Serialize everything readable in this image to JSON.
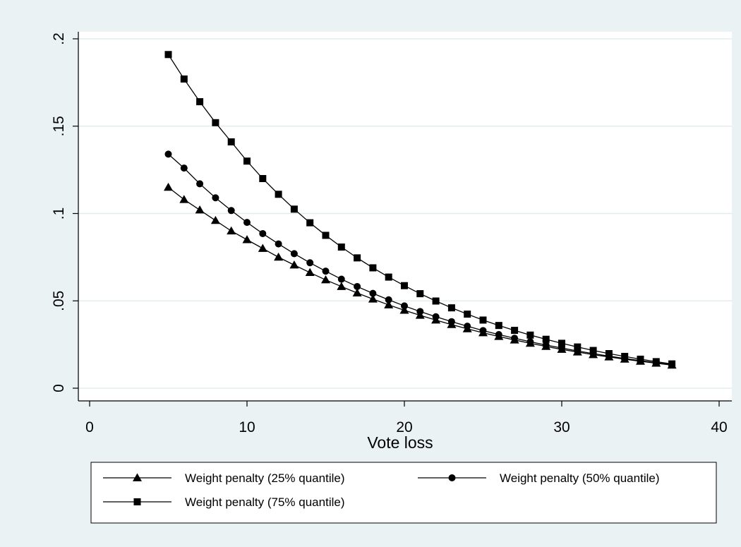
{
  "chart_data": {
    "type": "line",
    "title": "",
    "xlabel": "Vote loss",
    "ylabel": "",
    "xlim": [
      0,
      40
    ],
    "ylim": [
      0,
      0.2
    ],
    "xticks": [
      0,
      10,
      20,
      30,
      40
    ],
    "xtick_labels": [
      "0",
      "10",
      "20",
      "30",
      "40"
    ],
    "yticks": [
      0,
      0.05,
      0.1,
      0.15,
      0.2
    ],
    "ytick_labels": [
      "0",
      ".05",
      ".1",
      ".15",
      ".2"
    ],
    "grid": "horizontal",
    "legend_position": "bottom",
    "x": [
      5,
      6,
      7,
      8,
      9,
      10,
      11,
      12,
      13,
      14,
      15,
      16,
      17,
      18,
      19,
      20,
      21,
      22,
      23,
      24,
      25,
      26,
      27,
      28,
      29,
      30,
      31,
      32,
      33,
      34,
      35,
      36,
      37
    ],
    "series": [
      {
        "name": "Weight penalty (25% quantile)",
        "marker": "triangle",
        "values": [
          0.115,
          0.108,
          0.102,
          0.096,
          0.09,
          0.085,
          0.08,
          0.075,
          0.0705,
          0.0662,
          0.062,
          0.0582,
          0.0545,
          0.051,
          0.0477,
          0.0446,
          0.0417,
          0.039,
          0.0364,
          0.034,
          0.0317,
          0.0296,
          0.0276,
          0.0257,
          0.0239,
          0.0222,
          0.0207,
          0.0192,
          0.0179,
          0.0166,
          0.0154,
          0.0143,
          0.0132
        ]
      },
      {
        "name": "Weight penalty (50% quantile)",
        "marker": "circle",
        "values": [
          0.134,
          0.126,
          0.117,
          0.109,
          0.1017,
          0.0949,
          0.0885,
          0.0826,
          0.077,
          0.0718,
          0.067,
          0.0624,
          0.0582,
          0.0543,
          0.0506,
          0.0471,
          0.0439,
          0.0409,
          0.0381,
          0.0355,
          0.033,
          0.0307,
          0.0286,
          0.0266,
          0.0247,
          0.023,
          0.0213,
          0.0198,
          0.0184,
          0.017,
          0.0158,
          0.0146,
          0.0135
        ]
      },
      {
        "name": "Weight penalty (75% quantile)",
        "marker": "square",
        "values": [
          0.191,
          0.177,
          0.164,
          0.152,
          0.141,
          0.13,
          0.12,
          0.111,
          0.1025,
          0.0947,
          0.0875,
          0.0808,
          0.0746,
          0.0689,
          0.0636,
          0.0587,
          0.0541,
          0.0499,
          0.046,
          0.0424,
          0.039,
          0.0359,
          0.0331,
          0.0304,
          0.028,
          0.0257,
          0.0236,
          0.0216,
          0.0198,
          0.0182,
          0.0166,
          0.0152,
          0.0139
        ]
      }
    ]
  }
}
